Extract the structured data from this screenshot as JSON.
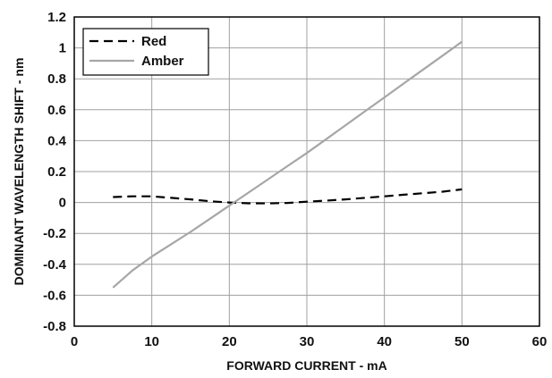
{
  "chart_data": {
    "type": "line",
    "title": "",
    "xlabel": "FORWARD CURRENT - mA",
    "ylabel": "DOMINANT WAVELENGTH SHIFT - nm",
    "xlim": [
      0,
      60
    ],
    "ylim": [
      -0.8,
      1.2
    ],
    "xticks": [
      "0",
      "10",
      "20",
      "30",
      "40",
      "50",
      "60"
    ],
    "yticks": [
      "-0.8",
      "-0.6",
      "-0.4",
      "-0.2",
      "0",
      "0.2",
      "0.4",
      "0.6",
      "0.8",
      "1",
      "1.2"
    ],
    "grid": true,
    "legend_position": "top-left",
    "series": [
      {
        "name": "Red",
        "color": "#000000",
        "style": "dashed",
        "x": [
          5,
          7.5,
          10,
          12.5,
          15,
          17.5,
          20,
          22.5,
          25,
          27.5,
          30,
          32.5,
          35,
          37.5,
          40,
          42.5,
          45,
          47.5,
          50
        ],
        "y": [
          0.035,
          0.04,
          0.04,
          0.03,
          0.02,
          0.008,
          0.0,
          -0.005,
          -0.006,
          -0.003,
          0.005,
          0.012,
          0.02,
          0.03,
          0.04,
          0.05,
          0.06,
          0.07,
          0.085
        ]
      },
      {
        "name": "Amber",
        "color": "#a6a6a6",
        "style": "solid",
        "x": [
          5,
          7.5,
          10,
          12.5,
          15,
          17.5,
          20,
          22.5,
          25,
          27.5,
          30,
          32.5,
          35,
          37.5,
          40,
          42.5,
          45,
          47.5,
          50
        ],
        "y": [
          -0.55,
          -0.44,
          -0.35,
          -0.27,
          -0.19,
          -0.105,
          -0.02,
          0.065,
          0.15,
          0.235,
          0.32,
          0.41,
          0.5,
          0.59,
          0.68,
          0.77,
          0.86,
          0.95,
          1.04
        ]
      }
    ]
  }
}
